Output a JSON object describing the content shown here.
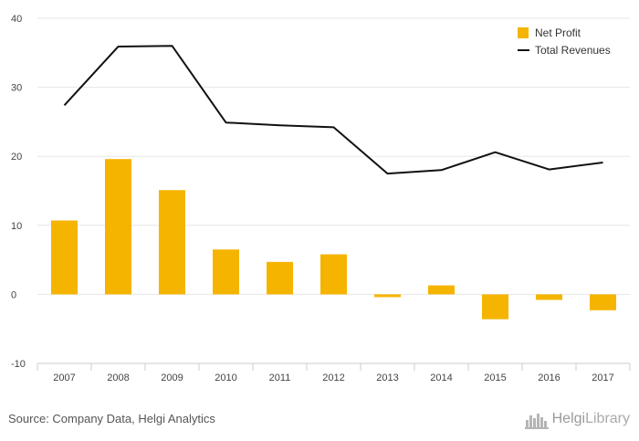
{
  "chart_data": {
    "type": "bar",
    "title": "",
    "xlabel": "",
    "ylabel": "",
    "categories": [
      "2007",
      "2008",
      "2009",
      "2010",
      "2011",
      "2012",
      "2013",
      "2014",
      "2015",
      "2016",
      "2017"
    ],
    "ylim": [
      -10,
      40
    ],
    "yticks": [
      -10,
      0,
      10,
      20,
      30,
      40
    ],
    "grid": true,
    "legend_position": "top-right",
    "series": [
      {
        "name": "Net Profit",
        "type": "bar",
        "color": "#F5B400",
        "values": [
          10.7,
          19.6,
          15.1,
          6.5,
          4.7,
          5.8,
          -0.4,
          1.3,
          -3.6,
          -0.8,
          -2.3
        ]
      },
      {
        "name": "Total Revenues",
        "type": "line",
        "color": "#111111",
        "values": [
          27.4,
          35.9,
          36.0,
          24.9,
          24.5,
          24.2,
          17.5,
          18.0,
          20.6,
          18.1,
          19.1
        ]
      }
    ]
  },
  "footer": {
    "source": "Source: Company Data, Helgi Analytics",
    "logo_text_bold": "Helgi",
    "logo_text_light": "Library",
    "logo_icon": "helgi-building-icon"
  }
}
